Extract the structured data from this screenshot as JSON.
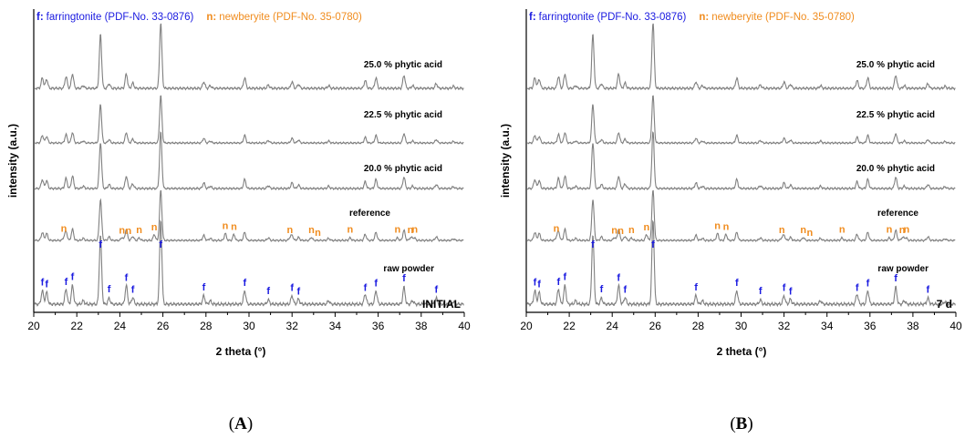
{
  "chart_data": [
    {
      "type": "line",
      "panel_label": "(A)",
      "corner_label": "INITIAL",
      "xlabel": "2 theta (°)",
      "ylabel": "intensity (a.u.)",
      "xlim": [
        20,
        40
      ],
      "xticks": [
        20,
        22,
        24,
        26,
        28,
        30,
        32,
        34,
        36,
        38,
        40
      ],
      "legend": {
        "f_key": "f:",
        "f_text": "farringtonite (PDF-No. 33-0876)",
        "n_key": "n:",
        "n_text": "newberyite (PDF-No. 35-0780)",
        "f_color": "#1a1ae0",
        "n_color": "#f08c1e"
      },
      "line_color": "#808080",
      "series": [
        {
          "name": "25.0 % phytic acid"
        },
        {
          "name": "22.5 % phytic acid"
        },
        {
          "name": "20.0 % phytic acid"
        },
        {
          "name": "reference"
        },
        {
          "name": "raw powder"
        }
      ],
      "f_markers": [
        20.4,
        20.6,
        21.5,
        21.8,
        23.1,
        23.5,
        24.3,
        24.6,
        25.9,
        27.9,
        29.8,
        30.9,
        32.0,
        32.3,
        35.4,
        35.9,
        37.2,
        38.7
      ],
      "n_markers": [
        21.4,
        24.1,
        24.4,
        24.9,
        25.6,
        28.9,
        29.3,
        31.9,
        32.9,
        33.2,
        34.7,
        36.9,
        37.5,
        37.7
      ]
    },
    {
      "type": "line",
      "panel_label": "(B)",
      "corner_label": "7 d",
      "xlabel": "2 theta (°)",
      "ylabel": "intensity (a.u.)",
      "xlim": [
        20,
        40
      ],
      "xticks": [
        20,
        22,
        24,
        26,
        28,
        30,
        32,
        34,
        36,
        38,
        40
      ],
      "legend": {
        "f_key": "f:",
        "f_text": "farringtonite (PDF-No. 33-0876)",
        "n_key": "n:",
        "n_text": "newberyite (PDF-No. 35-0780)",
        "f_color": "#1a1ae0",
        "n_color": "#f08c1e"
      },
      "line_color": "#808080",
      "series": [
        {
          "name": "25.0 % phytic acid"
        },
        {
          "name": "22.5 % phytic acid"
        },
        {
          "name": "20.0 % phytic acid"
        },
        {
          "name": "reference"
        },
        {
          "name": "raw powder"
        }
      ],
      "f_markers": [
        20.4,
        20.6,
        21.5,
        21.8,
        23.1,
        23.5,
        24.3,
        24.6,
        25.9,
        27.9,
        29.8,
        30.9,
        32.0,
        32.3,
        35.4,
        35.9,
        37.2,
        38.7
      ],
      "n_markers": [
        21.4,
        24.1,
        24.4,
        24.9,
        25.6,
        28.9,
        29.3,
        31.9,
        32.9,
        33.2,
        34.7,
        36.9,
        37.5,
        37.7
      ]
    }
  ]
}
